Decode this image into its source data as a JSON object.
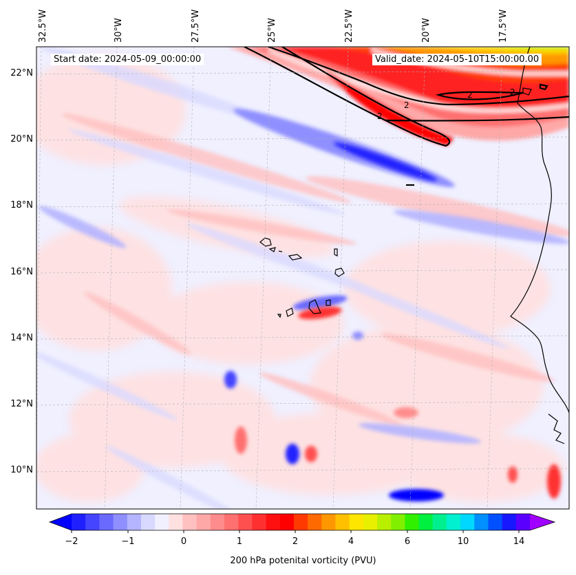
{
  "map": {
    "start_date_text": "Start date: 2024-05-09_00:00:00",
    "valid_date_text": "Valid_date: 2024-05-10T15:00:00.00",
    "lon_labels": [
      "32.5°W",
      "30°W",
      "27.5°W",
      "25°W",
      "22.5°W",
      "20°W",
      "17.5°W"
    ],
    "lat_labels": [
      "22°N",
      "20°N",
      "18°N",
      "16°N",
      "14°N",
      "12°N",
      "10°N"
    ],
    "contour_labels": [
      "2",
      "2",
      "2",
      "2"
    ],
    "features": [
      "potential-vorticity-field",
      "coastline-west-africa",
      "cape-verde-islands",
      "pv-2-contour"
    ]
  },
  "colorbar": {
    "tick_labels": [
      "−2",
      "−1",
      "0",
      "1",
      "2",
      "4",
      "6",
      "10",
      "14"
    ],
    "title": "200 hPa potenital vorticity (PVU)",
    "colors": [
      "#0000ff",
      "#2020ff",
      "#4545ff",
      "#6a6aff",
      "#8f8fff",
      "#b4b4ff",
      "#d9d9ff",
      "#f0f0ff",
      "#ffe0e0",
      "#ffc0c0",
      "#ffa8a8",
      "#ff8c8c",
      "#ff7070",
      "#ff5050",
      "#ff3030",
      "#ff1010",
      "#ff0000",
      "#ff3a00",
      "#ff6a00",
      "#ff9800",
      "#ffc000",
      "#ffe600",
      "#e8f000",
      "#b8f000",
      "#80f000",
      "#30f000",
      "#00f040",
      "#00f090",
      "#00f0d0",
      "#00d8ff",
      "#0090ff",
      "#0050ff",
      "#1818ff",
      "#5a00ff",
      "#a000ff"
    ]
  }
}
